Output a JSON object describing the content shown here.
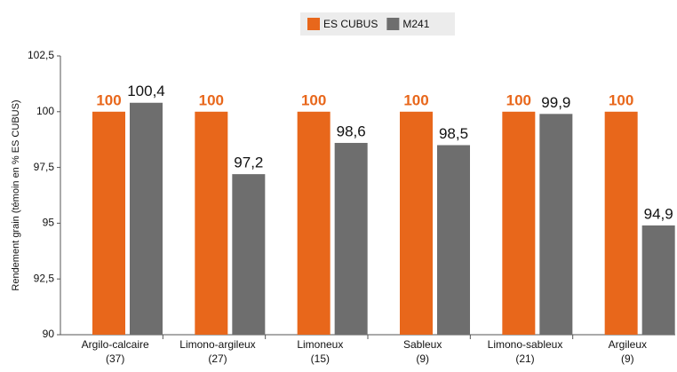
{
  "chart_data": {
    "type": "bar",
    "y_axis_label": "Rendement grain (témoin en % ES CUBUS)",
    "categories": [
      [
        "Argilo-calcaire",
        "(37)"
      ],
      [
        "Limono-argileux",
        "(27)"
      ],
      [
        "Limoneux",
        "(15)"
      ],
      [
        "Sableux",
        "(9)"
      ],
      [
        "Limono-sableux",
        "(21)"
      ],
      [
        "Argileux",
        "(9)"
      ]
    ],
    "series": [
      {
        "name": "ES CUBUS",
        "color": "#e8671b",
        "values": [
          100,
          100,
          100,
          100,
          100,
          100
        ]
      },
      {
        "name": "M241",
        "color": "#6e6e6e",
        "values": [
          100.4,
          97.2,
          98.6,
          98.5,
          99.9,
          94.9
        ],
        "value_labels": [
          "100,4",
          "97,2",
          "98,6",
          "98,5",
          "99,9",
          "94,9"
        ]
      }
    ],
    "ylim": [
      90,
      102.5
    ],
    "yticks": [
      90,
      {
        "value": 92.5,
        "label": "92,5"
      },
      95,
      {
        "value": 97.5,
        "label": "97,5"
      },
      100,
      {
        "value": 102.5,
        "label": "102,5"
      }
    ],
    "legend": "top"
  }
}
